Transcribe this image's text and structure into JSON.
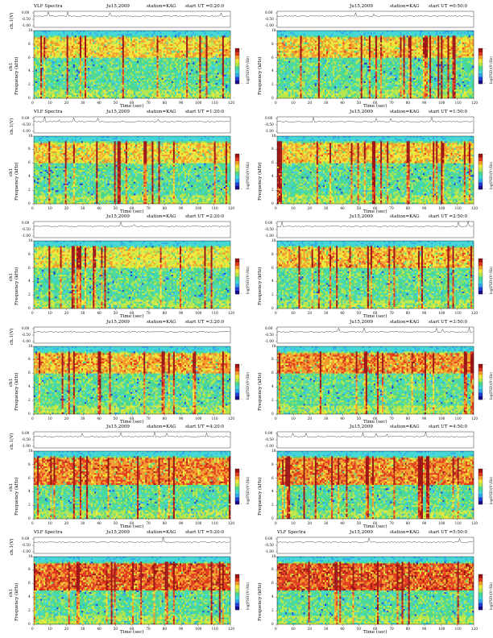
{
  "figure": {
    "rows": 6,
    "cols": 2
  },
  "colors": {
    "scale": [
      "#1a0a8c",
      "#1f3fd6",
      "#2fa8e8",
      "#3fd6d6",
      "#49d890",
      "#b4e64a",
      "#f2e83a",
      "#f29a2a",
      "#e23a1e",
      "#9c1414"
    ],
    "background": "#ffffff",
    "line": "#000000"
  },
  "chart_data": [
    {
      "type": "heatmap",
      "header": {
        "left": "VLF Spectra",
        "date": "Ju15,2009",
        "station": "station=KAG",
        "start": "start UT =0:20:0"
      },
      "top_plot": {
        "ylabel": "ch.1(V)",
        "yticks": [
          "0.00",
          "-0.50",
          "-1.00"
        ],
        "ylim": [
          -1.0,
          0.0
        ]
      },
      "spectrogram": {
        "ylabel": "Frequency (kHz)",
        "yticks": [
          "0",
          "2",
          "4",
          "6",
          "8",
          "10"
        ],
        "ylim": [
          0,
          10
        ],
        "channel_label": "ch1",
        "xlabel": "Time (sec)",
        "xticks": [
          "0",
          "10",
          "20",
          "30",
          "40",
          "50",
          "60",
          "70",
          "80",
          "90",
          "100",
          "110",
          "120"
        ],
        "xlim": [
          0,
          120
        ],
        "colorbar_label": "log(PSD)(V²/Hz)",
        "colorbar_ticks": [
          "-",
          "-"
        ],
        "activity_band_khz": [
          6,
          9
        ],
        "intensity": 0.45
      }
    },
    {
      "type": "heatmap",
      "header": {
        "left": "",
        "date": "Ju15,2009",
        "station": "station=KAG",
        "start": "start UT =0:50:0"
      },
      "top_plot": {
        "ylabel": "",
        "yticks": [
          "0.00",
          "-0.50",
          "-1.00"
        ],
        "ylim": [
          -1.0,
          0.0
        ]
      },
      "spectrogram": {
        "ylabel": "Frequency (kHz)",
        "yticks": [
          "0",
          "2",
          "4",
          "6",
          "8",
          "10"
        ],
        "ylim": [
          0,
          10
        ],
        "channel_label": "",
        "xlabel": "Time (sec)",
        "xticks": [
          "0",
          "10",
          "20",
          "30",
          "40",
          "50",
          "60",
          "70",
          "80",
          "90",
          "100",
          "110",
          "120"
        ],
        "xlim": [
          0,
          120
        ],
        "colorbar_label": "log(PSD)(V²/Hz)",
        "colorbar_ticks": [
          "-",
          "-"
        ],
        "activity_band_khz": [
          6,
          9
        ],
        "intensity": 0.5
      }
    },
    {
      "type": "heatmap",
      "header": {
        "left": "VLF Spectra",
        "date": "Ju15,2009",
        "station": "station=KAG",
        "start": "start UT =1:20:0"
      },
      "top_plot": {
        "ylabel": "ch.1(V)",
        "yticks": [
          "0.00",
          "-0.50",
          "-1.00"
        ],
        "ylim": [
          -1.0,
          0.0
        ]
      },
      "spectrogram": {
        "ylabel": "Frequency (kHz)",
        "yticks": [
          "0",
          "2",
          "4",
          "6",
          "8",
          "10"
        ],
        "ylim": [
          0,
          10
        ],
        "channel_label": "ch1",
        "xlabel": "Time (sec)",
        "xticks": [
          "0",
          "10",
          "20",
          "30",
          "40",
          "50",
          "60",
          "70",
          "80",
          "90",
          "100",
          "110",
          "120"
        ],
        "xlim": [
          0,
          120
        ],
        "colorbar_label": "log(PSD)(V²/Hz)",
        "colorbar_ticks": [
          "-",
          "-"
        ],
        "activity_band_khz": [
          6,
          9
        ],
        "intensity": 0.45
      }
    },
    {
      "type": "heatmap",
      "header": {
        "left": "",
        "date": "Ju15,2009",
        "station": "station=KAG",
        "start": "start UT =1:50:0"
      },
      "top_plot": {
        "ylabel": "",
        "yticks": [
          "0.00",
          "-0.50",
          "-1.00"
        ],
        "ylim": [
          -1.0,
          0.0
        ]
      },
      "spectrogram": {
        "ylabel": "Frequency (kHz)",
        "yticks": [
          "0",
          "2",
          "4",
          "6",
          "8",
          "10"
        ],
        "ylim": [
          0,
          10
        ],
        "channel_label": "",
        "xlabel": "Time (sec)",
        "xticks": [
          "0",
          "10",
          "20",
          "30",
          "40",
          "50",
          "60",
          "70",
          "80",
          "90",
          "100",
          "110",
          "120"
        ],
        "xlim": [
          0,
          120
        ],
        "colorbar_label": "log(PSD)(V²/Hz)",
        "colorbar_ticks": [
          "-",
          "-"
        ],
        "activity_band_khz": [
          6,
          9
        ],
        "intensity": 0.5
      }
    },
    {
      "type": "heatmap",
      "header": {
        "left": "",
        "date": "Ju15,2009",
        "station": "station=KAG",
        "start": "start UT =2:20:0"
      },
      "top_plot": {
        "ylabel": "",
        "yticks": [
          "0.00",
          "-0.50",
          "-1.00"
        ],
        "ylim": [
          -1.0,
          0.0
        ]
      },
      "spectrogram": {
        "ylabel": "Frequency (kHz)",
        "yticks": [
          "0",
          "2",
          "4",
          "6",
          "8",
          "10"
        ],
        "ylim": [
          0,
          10
        ],
        "channel_label": "ch1",
        "xlabel": "Time (sec)",
        "xticks": [
          "0",
          "10",
          "20",
          "30",
          "40",
          "50",
          "60",
          "70",
          "80",
          "90",
          "100",
          "110",
          "120"
        ],
        "xlim": [
          0,
          120
        ],
        "colorbar_label": "log(PSD)(V²/Hz)",
        "colorbar_ticks": [
          "-",
          "-"
        ],
        "activity_band_khz": [
          6,
          9
        ],
        "intensity": 0.35
      }
    },
    {
      "type": "heatmap",
      "header": {
        "left": "",
        "date": "Ju15,2009",
        "station": "station=KAG",
        "start": "start UT =2:50:0"
      },
      "top_plot": {
        "ylabel": "",
        "yticks": [
          "0.00",
          "-0.50",
          "-1.00"
        ],
        "ylim": [
          -1.0,
          0.0
        ]
      },
      "spectrogram": {
        "ylabel": "Frequency (kHz)",
        "yticks": [
          "0",
          "2",
          "4",
          "6",
          "8",
          "10"
        ],
        "ylim": [
          0,
          10
        ],
        "channel_label": "",
        "xlabel": "Time (sec)",
        "xticks": [
          "0",
          "10",
          "20",
          "30",
          "40",
          "50",
          "60",
          "70",
          "80",
          "90",
          "100",
          "110",
          "120"
        ],
        "xlim": [
          0,
          120
        ],
        "colorbar_label": "log(PSD)(V²/Hz)",
        "colorbar_ticks": [
          "-",
          "-"
        ],
        "activity_band_khz": [
          6,
          9
        ],
        "intensity": 0.55
      }
    },
    {
      "type": "heatmap",
      "header": {
        "left": "",
        "date": "Ju15,2009",
        "station": "station=KAG",
        "start": "start UT =3:20:0"
      },
      "top_plot": {
        "ylabel": "ch.1(V)",
        "yticks": [
          "0.00",
          "-0.50",
          "-1.00"
        ],
        "ylim": [
          -1.0,
          0.0
        ]
      },
      "spectrogram": {
        "ylabel": "Frequency (kHz)",
        "yticks": [
          "0",
          "2",
          "4",
          "6",
          "8",
          "10"
        ],
        "ylim": [
          0,
          10
        ],
        "channel_label": "ch1",
        "xlabel": "Time (sec)",
        "xticks": [
          "0",
          "10",
          "20",
          "30",
          "40",
          "50",
          "60",
          "70",
          "80",
          "90",
          "100",
          "110",
          "120"
        ],
        "xlim": [
          0,
          120
        ],
        "colorbar_label": "log(PSD)(V²/Hz)",
        "colorbar_ticks": [
          "-",
          "-"
        ],
        "activity_band_khz": [
          6,
          9
        ],
        "intensity": 0.6
      }
    },
    {
      "type": "heatmap",
      "header": {
        "left": "",
        "date": "Ju15,2009",
        "station": "station=KAG",
        "start": "start UT =3:50:0"
      },
      "top_plot": {
        "ylabel": "",
        "yticks": [
          "0.00",
          "-0.50",
          "-1.00"
        ],
        "ylim": [
          -1.0,
          0.0
        ]
      },
      "spectrogram": {
        "ylabel": "Frequency (kHz)",
        "yticks": [
          "0",
          "2",
          "4",
          "6",
          "8",
          "10"
        ],
        "ylim": [
          0,
          10
        ],
        "channel_label": "",
        "xlabel": "Time (sec)",
        "xticks": [
          "0",
          "10",
          "20",
          "30",
          "40",
          "50",
          "60",
          "70",
          "80",
          "90",
          "100",
          "110",
          "120"
        ],
        "xlim": [
          0,
          120
        ],
        "colorbar_label": "log(PSD)(V²/Hz)",
        "colorbar_ticks": [
          "-",
          "-"
        ],
        "activity_band_khz": [
          6,
          9
        ],
        "intensity": 0.7
      }
    },
    {
      "type": "heatmap",
      "header": {
        "left": "",
        "date": "Ju15,2009",
        "station": "station=KAG",
        "start": "start UT =4:20:0"
      },
      "top_plot": {
        "ylabel": "ch.1(V)",
        "yticks": [
          "0.00",
          "-0.50",
          "-1.00"
        ],
        "ylim": [
          -1.0,
          0.0
        ]
      },
      "spectrogram": {
        "ylabel": "Frequency (kHz)",
        "yticks": [
          "0",
          "2",
          "4",
          "6",
          "8",
          "10"
        ],
        "ylim": [
          0,
          10
        ],
        "channel_label": "ch1",
        "xlabel": "Time (sec)",
        "xticks": [
          "0",
          "10",
          "20",
          "30",
          "40",
          "50",
          "60",
          "70",
          "80",
          "90",
          "100",
          "110",
          "120"
        ],
        "xlim": [
          0,
          120
        ],
        "colorbar_label": "log(PSD)(V²/Hz)",
        "colorbar_ticks": [
          "-",
          "-"
        ],
        "activity_band_khz": [
          5,
          9
        ],
        "intensity": 0.75
      }
    },
    {
      "type": "heatmap",
      "header": {
        "left": "",
        "date": "Ju15,2009",
        "station": "station=KAG",
        "start": "start UT =4:50:0"
      },
      "top_plot": {
        "ylabel": "",
        "yticks": [
          "0.00",
          "-0.50",
          "-1.00"
        ],
        "ylim": [
          -1.0,
          0.0
        ]
      },
      "spectrogram": {
        "ylabel": "Frequency (kHz)",
        "yticks": [
          "0",
          "2",
          "4",
          "6",
          "8",
          "10"
        ],
        "ylim": [
          0,
          10
        ],
        "channel_label": "",
        "xlabel": "Time (sec)",
        "xticks": [
          "0",
          "10",
          "20",
          "30",
          "40",
          "50",
          "60",
          "70",
          "80",
          "90",
          "100",
          "110",
          "120"
        ],
        "xlim": [
          0,
          120
        ],
        "colorbar_label": "log(PSD)(V²/Hz)",
        "colorbar_ticks": [
          "-",
          "-"
        ],
        "activity_band_khz": [
          5,
          9
        ],
        "intensity": 0.75
      }
    },
    {
      "type": "heatmap",
      "header": {
        "left": "VLF Spectra",
        "date": "Ju15,2009",
        "station": "station=KAG",
        "start": "start UT =5:20:0"
      },
      "top_plot": {
        "ylabel": "ch.1(V)",
        "yticks": [
          "0.00",
          "-0.50",
          "-1.00"
        ],
        "ylim": [
          -1.0,
          0.0
        ]
      },
      "spectrogram": {
        "ylabel": "Frequency (kHz)",
        "yticks": [
          "0",
          "2",
          "4",
          "6",
          "8",
          "10"
        ],
        "ylim": [
          0,
          10
        ],
        "channel_label": "ch1",
        "xlabel": "Time (sec)",
        "xticks": [
          "0",
          "10",
          "20",
          "30",
          "40",
          "50",
          "60",
          "70",
          "80",
          "90",
          "100",
          "110",
          "120"
        ],
        "xlim": [
          0,
          120
        ],
        "colorbar_label": "log(PSD)(V²/Hz)",
        "colorbar_ticks": [
          "-",
          "-"
        ],
        "activity_band_khz": [
          5,
          9
        ],
        "intensity": 0.85
      }
    },
    {
      "type": "heatmap",
      "header": {
        "left": "VLF Spectra",
        "date": "Ju15,2009",
        "station": "station=KAG",
        "start": "start UT =5:50:0"
      },
      "top_plot": {
        "ylabel": "",
        "yticks": [
          "0.00",
          "-0.50",
          "-1.00"
        ],
        "ylim": [
          -1.0,
          0.0
        ]
      },
      "spectrogram": {
        "ylabel": "Frequency (kHz)",
        "yticks": [
          "0",
          "2",
          "4",
          "6",
          "8",
          "10"
        ],
        "ylim": [
          0,
          10
        ],
        "channel_label": "",
        "xlabel": "Time (sec)",
        "xticks": [
          "0",
          "10",
          "20",
          "30",
          "40",
          "50",
          "60",
          "70",
          "80",
          "90",
          "100",
          "110",
          "120"
        ],
        "xlim": [
          0,
          120
        ],
        "colorbar_label": "log(PSD)(V²/Hz)",
        "colorbar_ticks": [
          "-",
          "-"
        ],
        "activity_band_khz": [
          5,
          9
        ],
        "intensity": 0.9
      }
    }
  ]
}
